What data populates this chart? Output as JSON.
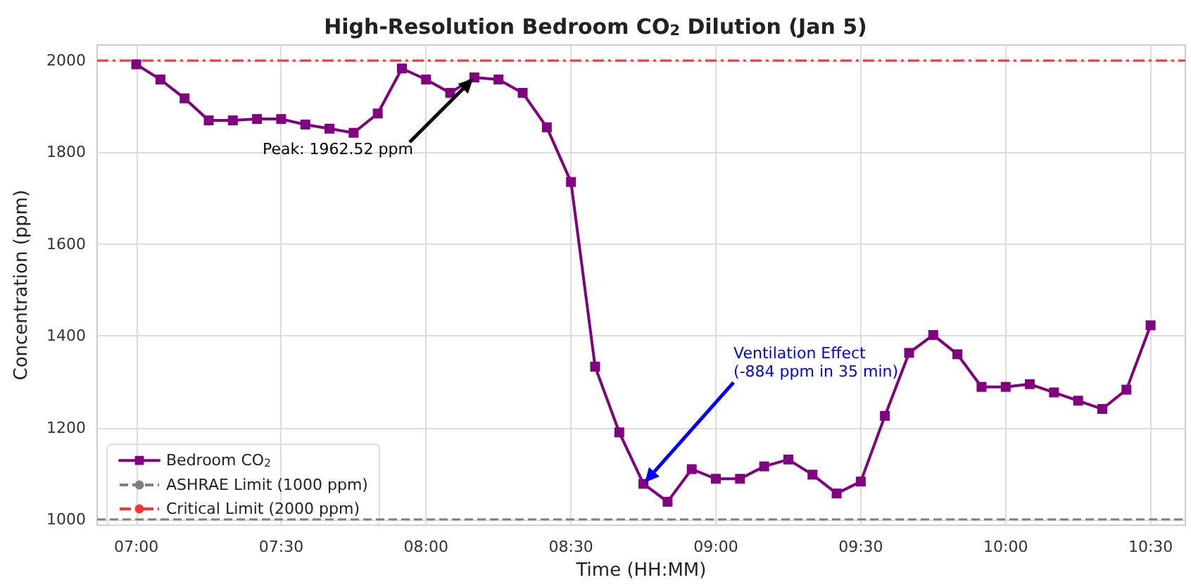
{
  "chart_data": {
    "type": "line",
    "title": "High-Resolution Bedroom CO$_{2}$ Dilution (Jan 5)",
    "xlabel": "Time (HH:MM)",
    "ylabel": "Concentration (ppm)",
    "x": [
      7,
      7.0833,
      7.1667,
      7.25,
      7.3333,
      7.4167,
      7.5,
      7.5833,
      7.6667,
      7.75,
      7.8333,
      7.9167,
      8,
      8.0833,
      8.1667,
      8.25,
      8.3333,
      8.4167,
      8.5,
      8.5833,
      8.6667,
      8.75,
      8.8333,
      8.9167,
      9,
      9.0833,
      9.1667,
      9.25,
      9.3333,
      9.4167,
      9.5,
      9.5833,
      9.6667,
      9.75,
      9.8333,
      9.9167,
      10,
      10.0833,
      10.1667,
      10.25,
      10.3333,
      10.4167,
      10.5
    ],
    "series": [
      {
        "name": "Bedroom CO$_{2}$",
        "color": "#800080",
        "values": [
          1991,
          1958,
          1917,
          1869,
          1869,
          1872,
          1872,
          1860,
          1851,
          1842,
          1884,
          1982,
          1958,
          1929,
          1962.52,
          1958,
          1929,
          1854,
          1735,
          1333,
          1190,
          1078,
          1039,
          1110,
          1089,
          1089,
          1116,
          1131,
          1098,
          1057,
          1083,
          1226,
          1363,
          1402,
          1360,
          1289,
          1289,
          1295,
          1277,
          1259,
          1241,
          1283,
          1423
        ]
      }
    ],
    "ref_lines": [
      {
        "axis": "y",
        "value": 1000,
        "label": "ASHRAE Limit (1000 ppm)",
        "color": "#808080",
        "line_style": "dashed"
      },
      {
        "axis": "y",
        "value": 2000,
        "label": "Critical Limit (2000 ppm)",
        "color": "#ff3333",
        "line_style": "dashdot"
      }
    ],
    "annotations": [
      {
        "text": "Peak: 1962.52 ppm",
        "x": 8.1667,
        "y": 1962.52
      },
      {
        "text": "Ventilation Effect\n(-884 ppm in 35 min)",
        "x": 8.75,
        "y": 1078
      }
    ],
    "xlim": [
      6.865,
      10.62
    ],
    "ylim": [
      988,
      2033
    ],
    "xticks": [
      {
        "value": 7,
        "label": "07:00"
      },
      {
        "value": 7.5,
        "label": "07:30"
      },
      {
        "value": 8,
        "label": "08:00"
      },
      {
        "value": 8.5,
        "label": "08:30"
      },
      {
        "value": 9,
        "label": "09:00"
      },
      {
        "value": 9.5,
        "label": "09:30"
      },
      {
        "value": 10,
        "label": "10:00"
      },
      {
        "value": 10.5,
        "label": "10:30"
      }
    ],
    "yticks": [
      1000,
      1200,
      1400,
      1600,
      1800,
      2000
    ],
    "grid": true,
    "legend": "bottom left",
    "marker": "square",
    "line_style": "solid"
  }
}
